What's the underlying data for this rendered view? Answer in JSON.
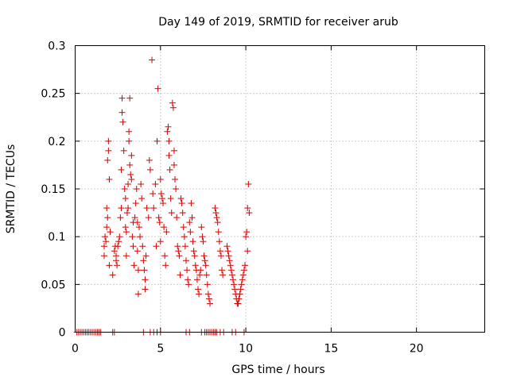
{
  "chart_data": {
    "type": "scatter",
    "title": "Day 149 of 2019, SRMTID for receiver arub",
    "xlabel": "GPS time / hours",
    "ylabel": "SRMTID / TECUs",
    "xlim": [
      0,
      24
    ],
    "ylim": [
      0,
      0.3
    ],
    "xticks": [
      0,
      5,
      10,
      15,
      20
    ],
    "xtick_labels": [
      "0",
      "5",
      "10",
      "15",
      "20"
    ],
    "yticks": [
      0,
      0.05,
      0.1,
      0.15,
      0.2,
      0.25,
      0.3
    ],
    "ytick_labels": [
      "0",
      "0.05",
      "0.1",
      "0.15",
      "0.2",
      "0.25",
      "0.3"
    ],
    "grid": true,
    "marker": "+",
    "color": "#d40000",
    "series": [
      {
        "name": "SRMTID",
        "points": [
          [
            0.1,
            0
          ],
          [
            0.2,
            0
          ],
          [
            0.3,
            0
          ],
          [
            0.4,
            0
          ],
          [
            0.5,
            0
          ],
          [
            0.6,
            0
          ],
          [
            0.7,
            0
          ],
          [
            0.8,
            0
          ],
          [
            0.9,
            0
          ],
          [
            1.0,
            0
          ],
          [
            1.1,
            0
          ],
          [
            1.2,
            0
          ],
          [
            1.3,
            0
          ],
          [
            1.4,
            0
          ],
          [
            1.5,
            0
          ],
          [
            2.2,
            0
          ],
          [
            2.3,
            0
          ],
          [
            4.0,
            0
          ],
          [
            4.4,
            0
          ],
          [
            4.6,
            0
          ],
          [
            4.8,
            0
          ],
          [
            5.0,
            0
          ],
          [
            6.5,
            0
          ],
          [
            6.7,
            0
          ],
          [
            7.4,
            0
          ],
          [
            7.6,
            0
          ],
          [
            7.7,
            0
          ],
          [
            7.8,
            0
          ],
          [
            7.9,
            0
          ],
          [
            8.0,
            0
          ],
          [
            8.1,
            0
          ],
          [
            8.2,
            0
          ],
          [
            8.3,
            0
          ],
          [
            8.5,
            0
          ],
          [
            8.7,
            0
          ],
          [
            9.2,
            0
          ],
          [
            9.4,
            0
          ],
          [
            9.9,
            0
          ],
          [
            1.7,
            0.08
          ],
          [
            1.7,
            0.09
          ],
          [
            1.75,
            0.1
          ],
          [
            1.8,
            0.095
          ],
          [
            1.85,
            0.11
          ],
          [
            1.85,
            0.13
          ],
          [
            1.9,
            0.12
          ],
          [
            1.9,
            0.18
          ],
          [
            1.95,
            0.19
          ],
          [
            1.95,
            0.2
          ],
          [
            2.0,
            0.16
          ],
          [
            2.0,
            0.07
          ],
          [
            2.05,
            0.105
          ],
          [
            2.2,
            0.06
          ],
          [
            2.3,
            0.085
          ],
          [
            2.35,
            0.09
          ],
          [
            2.4,
            0.08
          ],
          [
            2.4,
            0.075
          ],
          [
            2.45,
            0.07
          ],
          [
            2.5,
            0.09
          ],
          [
            2.55,
            0.095
          ],
          [
            2.6,
            0.1
          ],
          [
            2.65,
            0.12
          ],
          [
            2.7,
            0.13
          ],
          [
            2.7,
            0.17
          ],
          [
            2.75,
            0.245
          ],
          [
            2.75,
            0.23
          ],
          [
            2.8,
            0.22
          ],
          [
            2.85,
            0.19
          ],
          [
            2.9,
            0.15
          ],
          [
            2.95,
            0.14
          ],
          [
            2.95,
            0.11
          ],
          [
            3.0,
            0.105
          ],
          [
            3.0,
            0.08
          ],
          [
            3.05,
            0.125
          ],
          [
            3.1,
            0.13
          ],
          [
            3.1,
            0.155
          ],
          [
            3.15,
            0.2
          ],
          [
            3.15,
            0.21
          ],
          [
            3.2,
            0.245
          ],
          [
            3.2,
            0.175
          ],
          [
            3.25,
            0.165
          ],
          [
            3.3,
            0.16
          ],
          [
            3.3,
            0.185
          ],
          [
            3.35,
            0.1
          ],
          [
            3.4,
            0.115
          ],
          [
            3.4,
            0.09
          ],
          [
            3.45,
            0.07
          ],
          [
            3.5,
            0.12
          ],
          [
            3.55,
            0.135
          ],
          [
            3.6,
            0.15
          ],
          [
            3.65,
            0.115
          ],
          [
            3.65,
            0.085
          ],
          [
            3.7,
            0.065
          ],
          [
            3.7,
            0.04
          ],
          [
            3.75,
            0.11
          ],
          [
            3.8,
            0.1
          ],
          [
            3.85,
            0.155
          ],
          [
            3.9,
            0.14
          ],
          [
            3.95,
            0.09
          ],
          [
            4.0,
            0.075
          ],
          [
            4.05,
            0.065
          ],
          [
            4.1,
            0.055
          ],
          [
            4.1,
            0.045
          ],
          [
            4.15,
            0.08
          ],
          [
            4.2,
            0.13
          ],
          [
            4.3,
            0.12
          ],
          [
            4.35,
            0.18
          ],
          [
            4.4,
            0.17
          ],
          [
            4.5,
            0.285
          ],
          [
            4.55,
            0.145
          ],
          [
            4.6,
            0.13
          ],
          [
            4.7,
            0.155
          ],
          [
            4.75,
            0.09
          ],
          [
            4.8,
            0.2
          ],
          [
            4.85,
            0.255
          ],
          [
            4.9,
            0.12
          ],
          [
            4.95,
            0.115
          ],
          [
            5.0,
            0.095
          ],
          [
            5.0,
            0.16
          ],
          [
            5.05,
            0.145
          ],
          [
            5.1,
            0.14
          ],
          [
            5.15,
            0.135
          ],
          [
            5.2,
            0.11
          ],
          [
            5.25,
            0.08
          ],
          [
            5.3,
            0.07
          ],
          [
            5.35,
            0.105
          ],
          [
            5.4,
            0.21
          ],
          [
            5.45,
            0.215
          ],
          [
            5.5,
            0.2
          ],
          [
            5.5,
            0.185
          ],
          [
            5.55,
            0.17
          ],
          [
            5.6,
            0.14
          ],
          [
            5.65,
            0.125
          ],
          [
            5.7,
            0.24
          ],
          [
            5.75,
            0.235
          ],
          [
            5.8,
            0.19
          ],
          [
            5.8,
            0.175
          ],
          [
            5.85,
            0.16
          ],
          [
            5.9,
            0.15
          ],
          [
            5.95,
            0.12
          ],
          [
            6.0,
            0.09
          ],
          [
            6.05,
            0.085
          ],
          [
            6.1,
            0.08
          ],
          [
            6.15,
            0.06
          ],
          [
            6.2,
            0.14
          ],
          [
            6.25,
            0.135
          ],
          [
            6.3,
            0.125
          ],
          [
            6.35,
            0.11
          ],
          [
            6.4,
            0.1
          ],
          [
            6.45,
            0.09
          ],
          [
            6.5,
            0.075
          ],
          [
            6.55,
            0.065
          ],
          [
            6.6,
            0.055
          ],
          [
            6.65,
            0.05
          ],
          [
            6.7,
            0.115
          ],
          [
            6.75,
            0.105
          ],
          [
            6.8,
            0.135
          ],
          [
            6.85,
            0.12
          ],
          [
            6.9,
            0.095
          ],
          [
            6.95,
            0.085
          ],
          [
            7.0,
            0.08
          ],
          [
            7.05,
            0.07
          ],
          [
            7.1,
            0.065
          ],
          [
            7.15,
            0.055
          ],
          [
            7.2,
            0.045
          ],
          [
            7.25,
            0.04
          ],
          [
            7.3,
            0.06
          ],
          [
            7.35,
            0.065
          ],
          [
            7.4,
            0.11
          ],
          [
            7.45,
            0.1
          ],
          [
            7.5,
            0.095
          ],
          [
            7.55,
            0.08
          ],
          [
            7.6,
            0.075
          ],
          [
            7.65,
            0.07
          ],
          [
            7.7,
            0.06
          ],
          [
            7.75,
            0.05
          ],
          [
            7.8,
            0.04
          ],
          [
            7.85,
            0.035
          ],
          [
            7.9,
            0.03
          ],
          [
            8.2,
            0.13
          ],
          [
            8.25,
            0.125
          ],
          [
            8.3,
            0.12
          ],
          [
            8.35,
            0.115
          ],
          [
            8.4,
            0.105
          ],
          [
            8.45,
            0.095
          ],
          [
            8.5,
            0.085
          ],
          [
            8.55,
            0.08
          ],
          [
            8.6,
            0.065
          ],
          [
            8.65,
            0.06
          ],
          [
            8.9,
            0.09
          ],
          [
            8.95,
            0.085
          ],
          [
            9.0,
            0.08
          ],
          [
            9.05,
            0.075
          ],
          [
            9.1,
            0.07
          ],
          [
            9.15,
            0.065
          ],
          [
            9.2,
            0.06
          ],
          [
            9.25,
            0.055
          ],
          [
            9.3,
            0.05
          ],
          [
            9.35,
            0.045
          ],
          [
            9.4,
            0.04
          ],
          [
            9.45,
            0.035
          ],
          [
            9.5,
            0.03
          ],
          [
            9.55,
            0.03
          ],
          [
            9.6,
            0.035
          ],
          [
            9.65,
            0.04
          ],
          [
            9.7,
            0.045
          ],
          [
            9.75,
            0.05
          ],
          [
            9.8,
            0.055
          ],
          [
            9.85,
            0.06
          ],
          [
            9.9,
            0.065
          ],
          [
            9.95,
            0.07
          ],
          [
            10.0,
            0.1
          ],
          [
            10.05,
            0.105
          ],
          [
            10.1,
            0.085
          ],
          [
            10.1,
            0.13
          ],
          [
            10.15,
            0.155
          ],
          [
            10.2,
            0.125
          ]
        ]
      }
    ]
  }
}
